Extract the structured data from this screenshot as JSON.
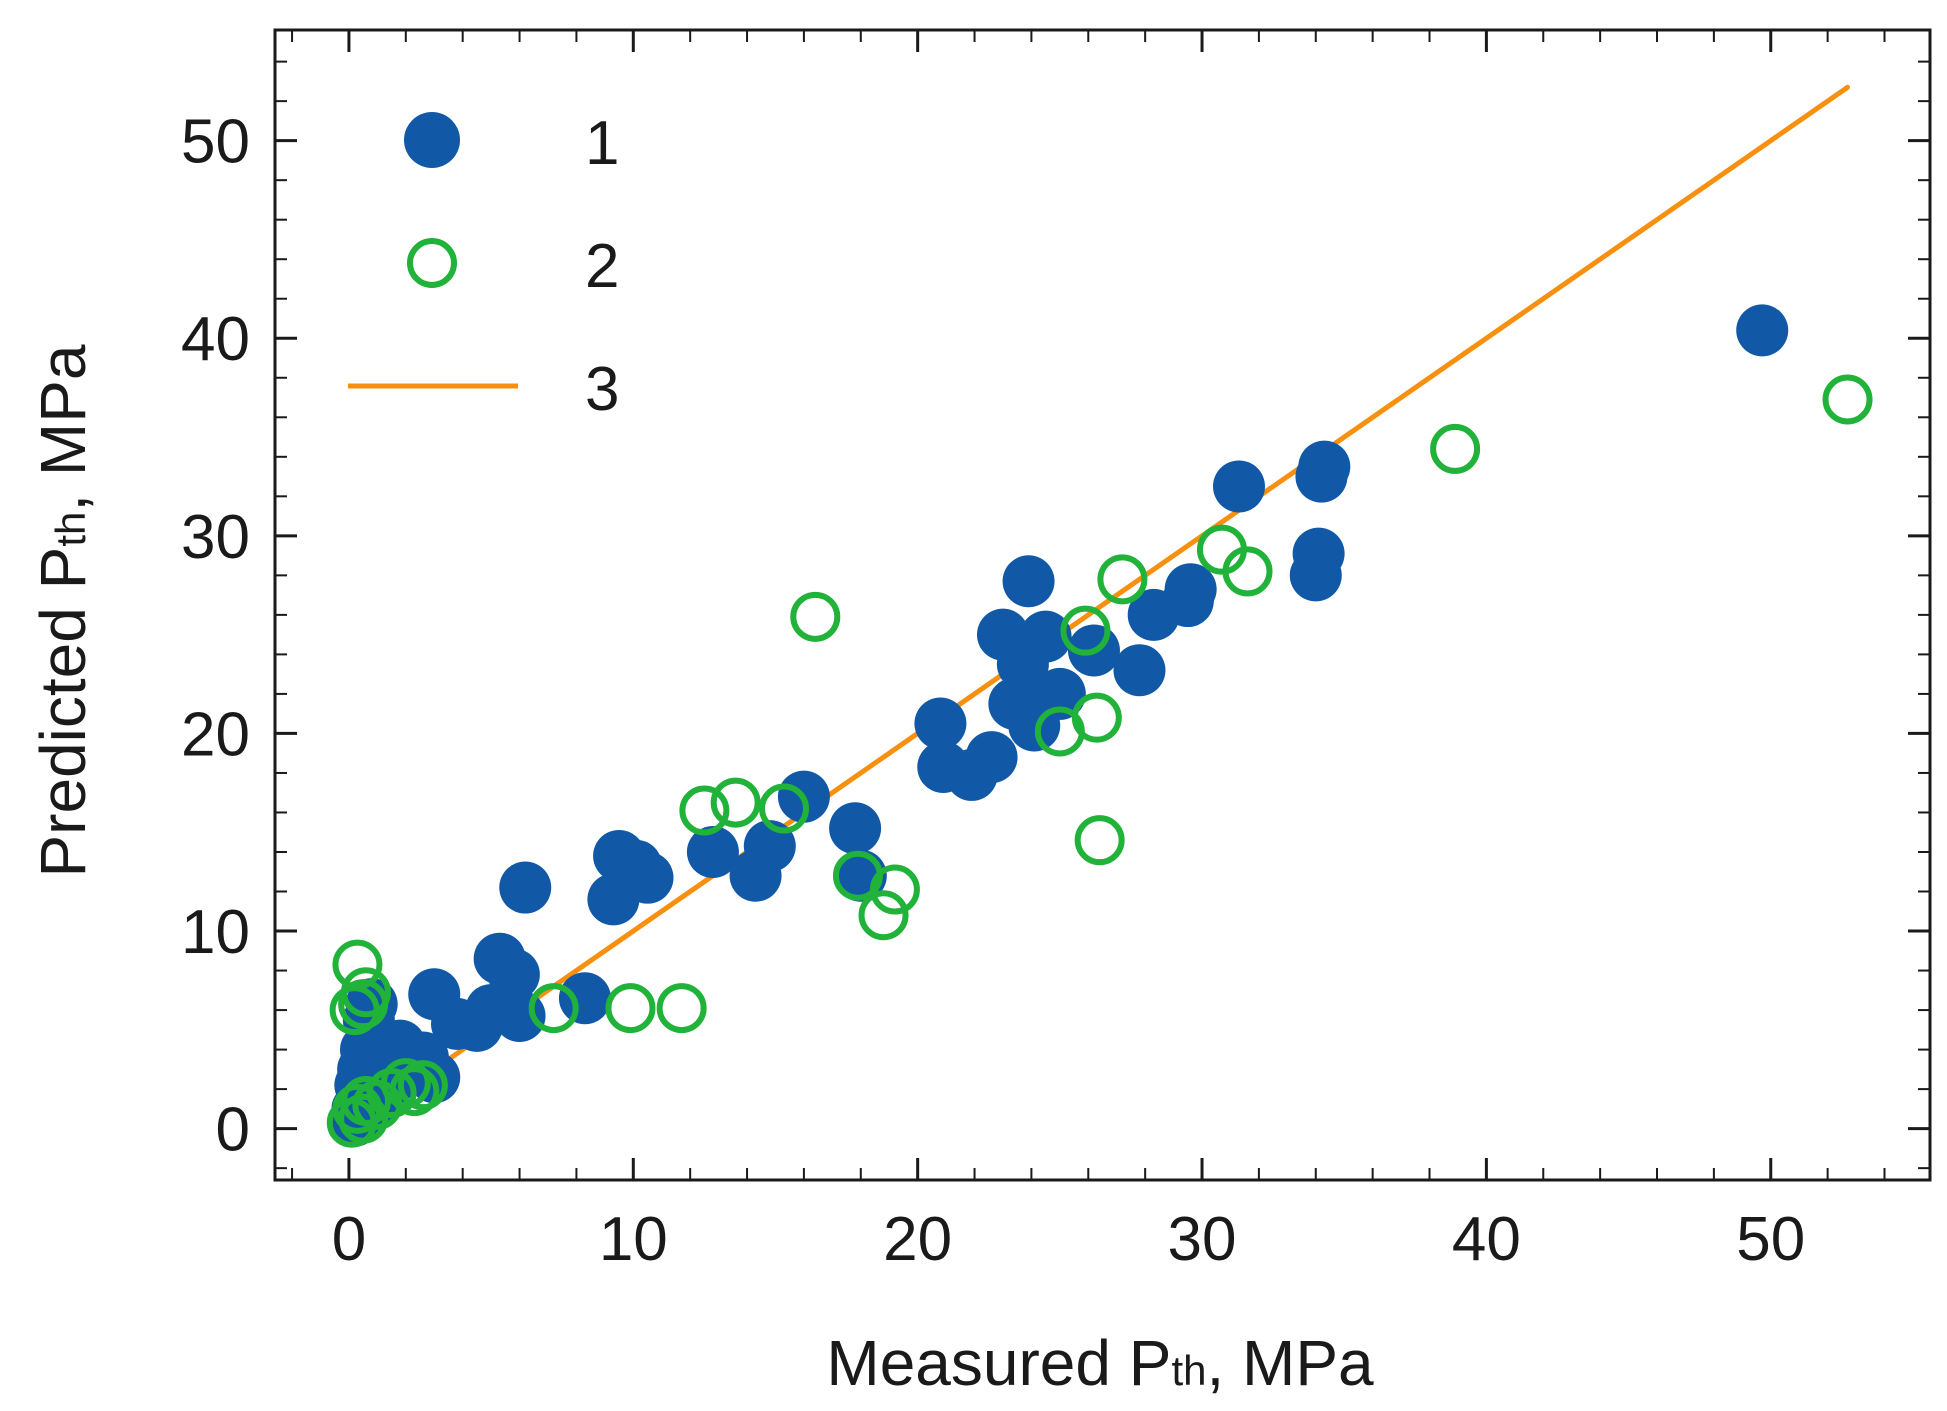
{
  "chart_data": {
    "type": "scatter",
    "xlabel": {
      "prefix": "Measured P",
      "sub": "th",
      "suffix": ", MPa"
    },
    "ylabel": {
      "prefix": "Predicted P",
      "sub": "th",
      "suffix": ", MPa"
    },
    "xlim": [
      -2.6,
      55.6
    ],
    "ylim": [
      -2.6,
      55.6
    ],
    "xticks": [
      0,
      10,
      20,
      30,
      40,
      50
    ],
    "yticks": [
      0,
      10,
      20,
      30,
      40,
      50
    ],
    "xtick_labels": [
      "0",
      "10",
      "20",
      "30",
      "40",
      "50"
    ],
    "ytick_labels": [
      "0",
      "10",
      "20",
      "30",
      "40",
      "50"
    ],
    "minor_tick_step": 2,
    "legend": {
      "position": "top-left",
      "entries": [
        "1",
        "2",
        "3"
      ]
    },
    "series": [
      {
        "name": "1",
        "marker": "filled-circle",
        "color": "#1159a6",
        "points": [
          [
            0.2,
            0.4
          ],
          [
            0.3,
            1.0
          ],
          [
            0.4,
            2.2
          ],
          [
            0.5,
            3.0
          ],
          [
            0.6,
            4.0
          ],
          [
            0.7,
            5.5
          ],
          [
            0.8,
            6.3
          ],
          [
            1.0,
            1.5
          ],
          [
            1.2,
            3.2
          ],
          [
            1.5,
            2.5
          ],
          [
            1.8,
            4.2
          ],
          [
            2.2,
            3.0
          ],
          [
            2.6,
            3.6
          ],
          [
            3.0,
            2.6
          ],
          [
            3.0,
            6.8
          ],
          [
            3.8,
            5.3
          ],
          [
            4.5,
            5.2
          ],
          [
            5.0,
            6.0
          ],
          [
            5.3,
            8.6
          ],
          [
            5.8,
            7.8
          ],
          [
            6.0,
            5.7
          ],
          [
            6.2,
            12.2
          ],
          [
            8.3,
            6.6
          ],
          [
            9.3,
            11.6
          ],
          [
            9.5,
            13.8
          ],
          [
            10.1,
            13.3
          ],
          [
            10.5,
            12.7
          ],
          [
            12.8,
            14.0
          ],
          [
            14.3,
            12.8
          ],
          [
            14.8,
            14.3
          ],
          [
            16.0,
            16.8
          ],
          [
            17.8,
            15.2
          ],
          [
            18.0,
            12.8
          ],
          [
            20.8,
            20.5
          ],
          [
            20.9,
            18.3
          ],
          [
            21.9,
            17.9
          ],
          [
            22.6,
            18.8
          ],
          [
            23.0,
            25.0
          ],
          [
            23.4,
            21.5
          ],
          [
            23.7,
            23.5
          ],
          [
            23.9,
            27.7
          ],
          [
            24.1,
            20.4
          ],
          [
            24.5,
            24.9
          ],
          [
            25.0,
            22.0
          ],
          [
            26.2,
            24.2
          ],
          [
            27.8,
            23.2
          ],
          [
            28.3,
            26.0
          ],
          [
            29.5,
            26.7
          ],
          [
            29.6,
            27.3
          ],
          [
            31.3,
            32.5
          ],
          [
            34.0,
            28.0
          ],
          [
            34.1,
            29.1
          ],
          [
            34.2,
            33.0
          ],
          [
            34.3,
            33.5
          ],
          [
            49.7,
            40.4
          ]
        ]
      },
      {
        "name": "2",
        "marker": "open-circle",
        "color": "#21b23a",
        "points": [
          [
            0.1,
            0.3
          ],
          [
            0.3,
            1.0
          ],
          [
            0.5,
            0.5
          ],
          [
            0.6,
            1.4
          ],
          [
            1.0,
            1.2
          ],
          [
            1.5,
            1.8
          ],
          [
            2.0,
            2.3
          ],
          [
            2.3,
            1.9
          ],
          [
            2.6,
            2.2
          ],
          [
            0.2,
            6.0
          ],
          [
            0.3,
            8.3
          ],
          [
            0.5,
            6.3
          ],
          [
            0.6,
            6.9
          ],
          [
            7.2,
            6.1
          ],
          [
            9.9,
            6.1
          ],
          [
            11.7,
            6.1
          ],
          [
            12.5,
            16.1
          ],
          [
            13.6,
            16.5
          ],
          [
            15.3,
            16.2
          ],
          [
            16.4,
            25.9
          ],
          [
            17.9,
            12.8
          ],
          [
            18.8,
            10.8
          ],
          [
            19.2,
            12.1
          ],
          [
            25.0,
            20.1
          ],
          [
            25.9,
            25.2
          ],
          [
            26.3,
            20.8
          ],
          [
            26.4,
            14.6
          ],
          [
            27.2,
            27.8
          ],
          [
            30.7,
            29.3
          ],
          [
            31.6,
            28.2
          ],
          [
            38.9,
            34.4
          ],
          [
            52.7,
            36.9
          ]
        ]
      },
      {
        "name": "3",
        "type": "line",
        "color": "#f7900f",
        "points": [
          [
            0,
            0
          ],
          [
            52.7,
            52.7
          ]
        ]
      }
    ]
  }
}
